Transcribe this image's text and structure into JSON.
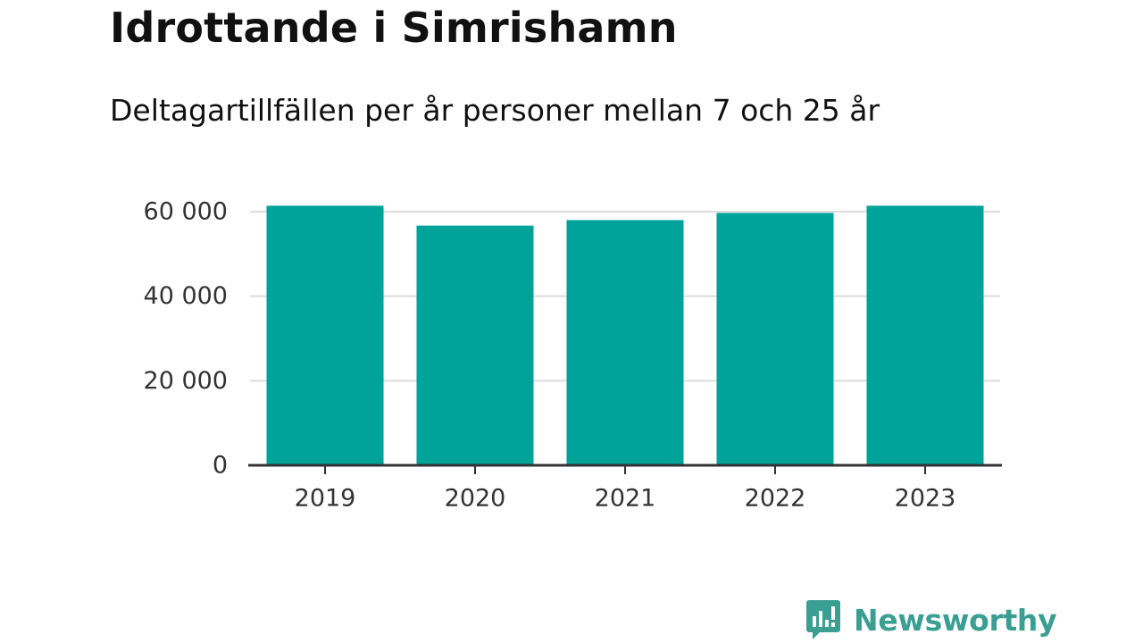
{
  "chart_data": {
    "type": "bar",
    "title": "Idrottande i Simrishamn",
    "subtitle": "Deltagartillfällen per år personer mellan 7 och 25 år",
    "categories": [
      "2019",
      "2020",
      "2021",
      "2022",
      "2023"
    ],
    "values": [
      61400,
      56700,
      58000,
      59700,
      61400
    ],
    "ylim": [
      0,
      66000
    ],
    "yticks": [
      0,
      20000,
      40000,
      60000
    ],
    "ytick_labels": [
      "0",
      "20 000",
      "40 000",
      "60 000"
    ],
    "xlabel": "",
    "ylabel": "",
    "grid": true,
    "legend": "none",
    "colors": {
      "bar": "#00a39a",
      "grid": "#dddddd",
      "axis": "#333333"
    }
  },
  "brand": {
    "name": "Newsworthy",
    "color": "#3a9f92",
    "icon": "chat-bar-chart-icon"
  }
}
